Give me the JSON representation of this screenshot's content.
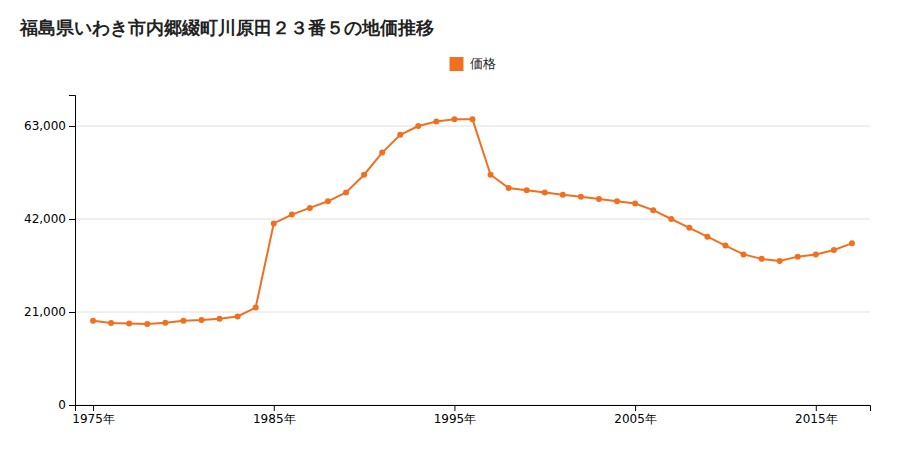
{
  "chart_data": {
    "type": "line",
    "title": "福島県いわき市内郷綴町川原田２３番５の地価推移",
    "x": [
      1975,
      1976,
      1977,
      1978,
      1979,
      1980,
      1981,
      1982,
      1983,
      1984,
      1985,
      1986,
      1987,
      1988,
      1989,
      1990,
      1991,
      1992,
      1993,
      1994,
      1995,
      1996,
      1997,
      1998,
      1999,
      2000,
      2001,
      2002,
      2003,
      2004,
      2005,
      2006,
      2007,
      2008,
      2009,
      2010,
      2011,
      2012,
      2013,
      2014,
      2015,
      2016,
      2017
    ],
    "series": [
      {
        "name": "価格",
        "color": "#f07020",
        "marker": "circle",
        "values": [
          19000,
          18500,
          18400,
          18300,
          18600,
          19000,
          19200,
          19500,
          20000,
          22000,
          41000,
          43000,
          44500,
          46000,
          48000,
          52000,
          57000,
          61000,
          63000,
          64000,
          64500,
          64500,
          52000,
          49000,
          48500,
          48000,
          47500,
          47000,
          46500,
          46000,
          45500,
          44000,
          42000,
          40000,
          38000,
          36000,
          34000,
          33000,
          32500,
          33500,
          34000,
          35000,
          36500
        ]
      }
    ],
    "xlim": [
      1974,
      2018
    ],
    "xticks": [
      {
        "value": 1975,
        "label": "1975年"
      },
      {
        "value": 1985,
        "label": "1985年"
      },
      {
        "value": 1995,
        "label": "1995年"
      },
      {
        "value": 2005,
        "label": "2005年"
      },
      {
        "value": 2015,
        "label": "2015年"
      }
    ],
    "ylim": [
      0,
      70000
    ],
    "yticks": [
      0,
      {
        "value": 21000,
        "label": "21,000"
      },
      {
        "value": 42000,
        "label": "42,000"
      },
      {
        "value": 63000,
        "label": "63,000"
      }
    ],
    "grid": "y",
    "legend": "top"
  }
}
